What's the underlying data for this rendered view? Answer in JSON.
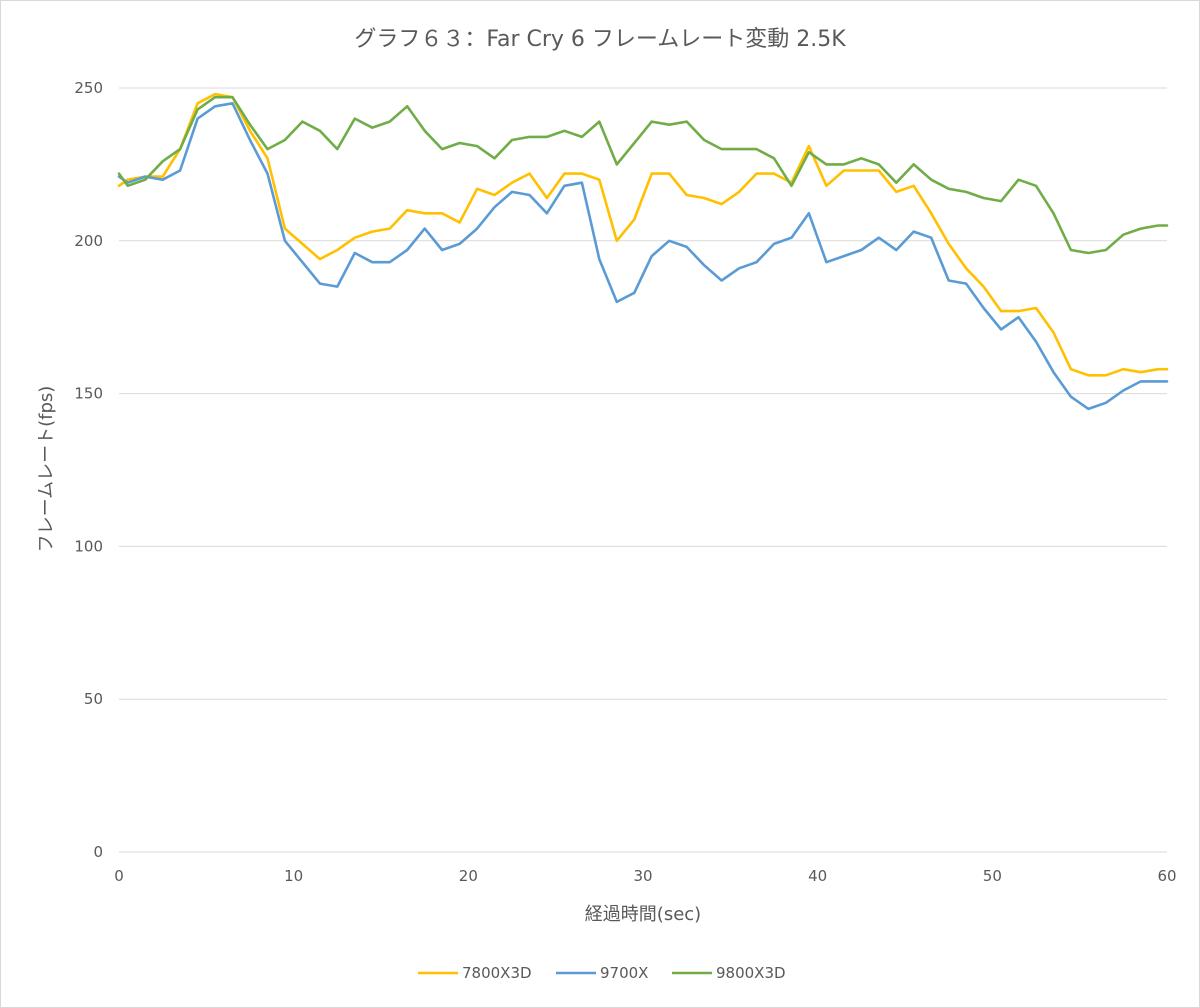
{
  "chart_data": {
    "type": "line",
    "title": "グラフ６３：Far Cry 6 フレームレート変動 2.5K",
    "xlabel": "経過時間(sec)",
    "ylabel": "フレームレート(fps)",
    "xlim": [
      0,
      60
    ],
    "ylim": [
      0,
      250
    ],
    "x_ticks": [
      "0",
      "10",
      "20",
      "30",
      "40",
      "50",
      "60"
    ],
    "y_ticks": [
      "0",
      "50",
      "100",
      "150",
      "200",
      "250"
    ],
    "grid": "horizontal",
    "legend_position": "bottom",
    "x": [
      0,
      0.5,
      1.5,
      2.5,
      3.5,
      4.5,
      5.5,
      6.5,
      7.5,
      8.5,
      9.5,
      10.5,
      11.5,
      12.5,
      13.5,
      14.5,
      15.5,
      16.5,
      17.5,
      18.5,
      19.5,
      20.5,
      21.5,
      22.5,
      23.5,
      24.5,
      25.5,
      26.5,
      27.5,
      28.5,
      29.5,
      30.5,
      31.5,
      32.5,
      33.5,
      34.5,
      35.5,
      36.5,
      37.5,
      38.5,
      39.5,
      40.5,
      41.5,
      42.5,
      43.5,
      44.5,
      45.5,
      46.5,
      47.5,
      48.5,
      49.5,
      50.5,
      51.5,
      52.5,
      53.5,
      54.5,
      55.5,
      56.5,
      57.5,
      58.5,
      59.5,
      60
    ],
    "series": [
      {
        "name": "7800X3D",
        "color": "#ffc000",
        "values": [
          218,
          220,
          221,
          221,
          230,
          245,
          248,
          247,
          236,
          227,
          204,
          199,
          194,
          197,
          201,
          203,
          204,
          210,
          209,
          209,
          206,
          217,
          215,
          219,
          222,
          214,
          222,
          222,
          220,
          200,
          207,
          222,
          222,
          215,
          214,
          212,
          216,
          222,
          222,
          219,
          231,
          218,
          223,
          223,
          223,
          216,
          218,
          209,
          199,
          191,
          185,
          177,
          177,
          178,
          170,
          158,
          156,
          156,
          158,
          157,
          158,
          158
        ]
      },
      {
        "name": "9700X",
        "color": "#5b9bd5",
        "values": [
          221,
          219,
          221,
          220,
          223,
          240,
          244,
          245,
          233,
          222,
          200,
          193,
          186,
          185,
          196,
          193,
          193,
          197,
          204,
          197,
          199,
          204,
          211,
          216,
          215,
          209,
          218,
          219,
          194,
          180,
          183,
          195,
          200,
          198,
          192,
          187,
          191,
          193,
          199,
          201,
          209,
          193,
          195,
          197,
          201,
          197,
          203,
          201,
          187,
          186,
          178,
          171,
          175,
          167,
          157,
          149,
          145,
          147,
          151,
          154,
          154,
          154
        ]
      },
      {
        "name": "9800X3D",
        "color": "#70ad47",
        "values": [
          222,
          218,
          220,
          226,
          230,
          243,
          247,
          247,
          238,
          230,
          233,
          239,
          236,
          230,
          240,
          237,
          239,
          244,
          236,
          230,
          232,
          231,
          227,
          233,
          234,
          234,
          236,
          234,
          239,
          225,
          232,
          239,
          238,
          239,
          233,
          230,
          230,
          230,
          227,
          218,
          229,
          225,
          225,
          227,
          225,
          219,
          225,
          220,
          217,
          216,
          214,
          213,
          220,
          218,
          209,
          197,
          196,
          197,
          202,
          204,
          205,
          205
        ]
      }
    ]
  }
}
